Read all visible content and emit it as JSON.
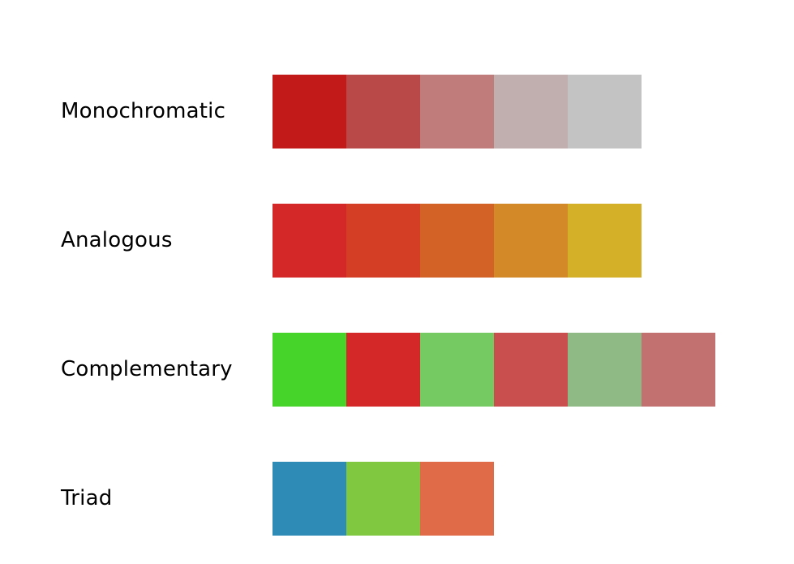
{
  "palettes": [
    {
      "label": "Monochromatic",
      "swatches": [
        "#c11a19",
        "#b94949",
        "#c07b7b",
        "#c1afaf",
        "#c3c3c3"
      ]
    },
    {
      "label": "Analogous",
      "swatches": [
        "#d42828",
        "#d43e25",
        "#d26226",
        "#d38928",
        "#d3b028"
      ]
    },
    {
      "label": "Complementary",
      "swatches": [
        "#46d42a",
        "#d42828",
        "#75cb62",
        "#c94f4f",
        "#8fb985",
        "#c37070"
      ]
    },
    {
      "label": "Triad",
      "swatches": [
        "#2e8bb5",
        "#80c840",
        "#e06b48"
      ]
    }
  ]
}
